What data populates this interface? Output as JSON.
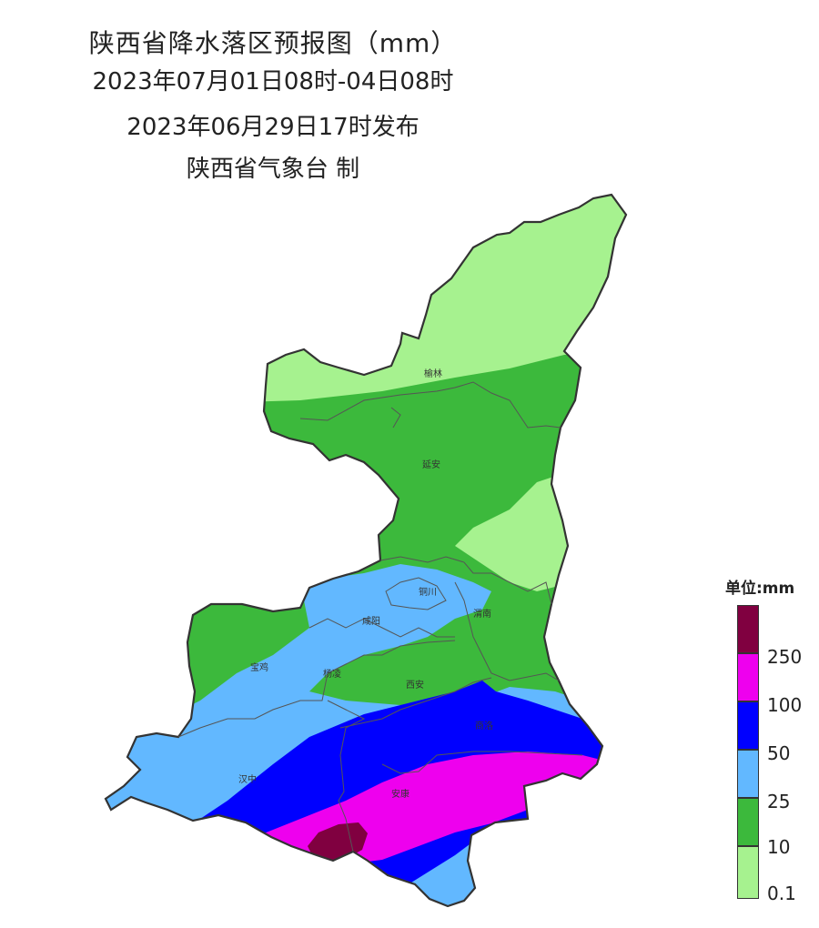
{
  "title": {
    "line1": "陕西省降水落区预报图（mm）",
    "line2": "2023年07月01日08时-04日08时",
    "line3": "2023年06月29日17时发布",
    "line4": "陕西省气象台 制"
  },
  "cities": {
    "yulin": "榆林",
    "yanan": "延安",
    "tongchuan": "铜川",
    "xianyang": "咸阳",
    "weinan": "渭南",
    "baoji": "宝鸡",
    "yangling": "杨凌",
    "xian": "西安",
    "shangluo": "商洛",
    "hanzhong": "汉中",
    "ankang": "安康"
  },
  "legend": {
    "title": "单位:mm",
    "labels": [
      "250",
      "100",
      "50",
      "25",
      "10",
      "0.1"
    ],
    "colors": {
      "c250": "#800040",
      "c100": "#ee00ee",
      "c50": "#0000ff",
      "c25": "#62b8ff",
      "c10": "#3cb93c",
      "c01": "#a6f28f"
    }
  }
}
